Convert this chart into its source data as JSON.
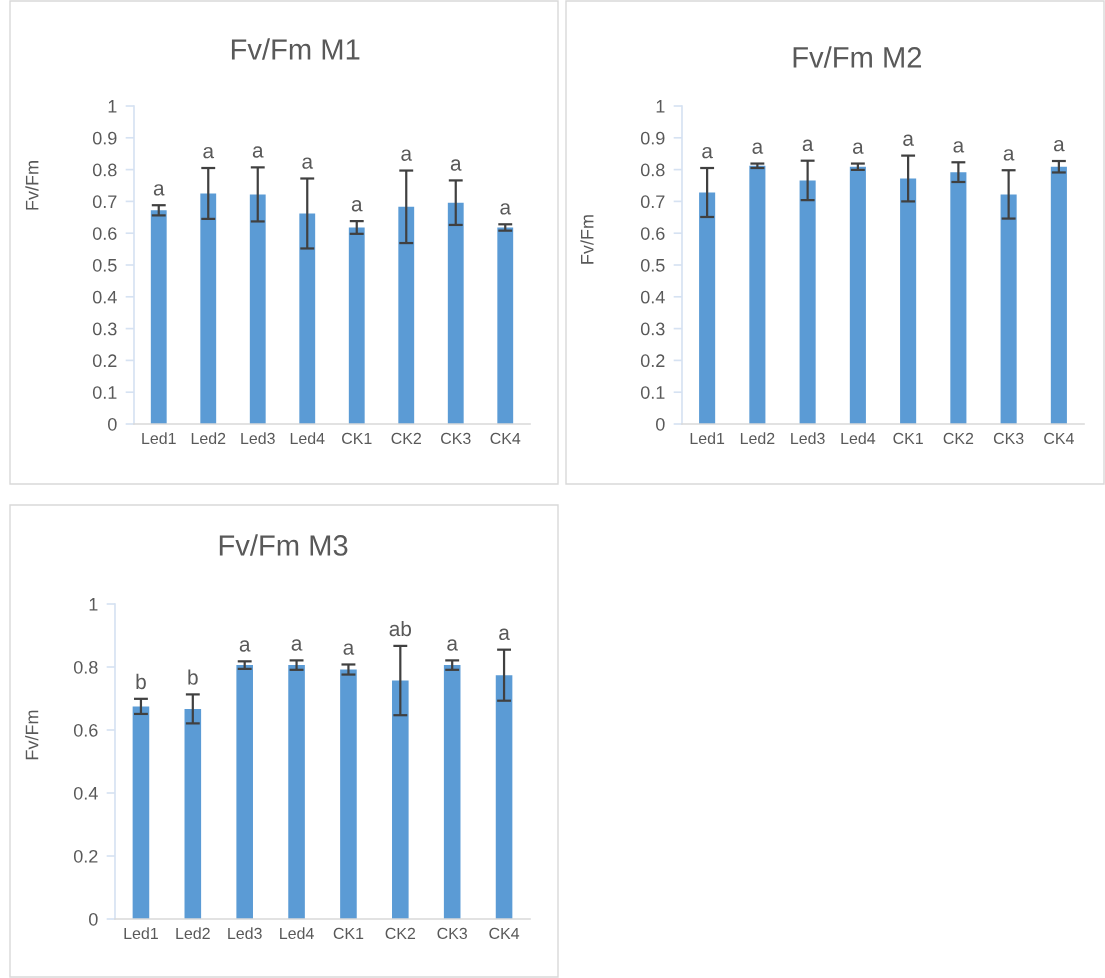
{
  "chart_data": [
    {
      "type": "bar",
      "title": "Fv/Fm M1",
      "ylabel": "Fv/Fm",
      "categories": [
        "Led1",
        "Led2",
        "Led3",
        "Led4",
        "CK1",
        "CK2",
        "CK3",
        "CK4"
      ],
      "color": "#5b9bd5",
      "values": [
        0.672,
        0.725,
        0.722,
        0.662,
        0.618,
        0.683,
        0.696,
        0.618
      ],
      "errors": [
        0.016,
        0.08,
        0.085,
        0.11,
        0.02,
        0.114,
        0.07,
        0.01
      ],
      "ylim": [
        0,
        1
      ],
      "yticks": [
        0,
        0.1,
        0.2,
        0.3,
        0.4,
        0.5,
        0.6,
        0.7,
        0.8,
        0.9,
        1
      ],
      "annotations": [
        {
          "text": "a",
          "x": "Led1",
          "y": 0.688
        },
        {
          "text": "a",
          "x": "Led2",
          "y": 0.805
        },
        {
          "text": "a",
          "x": "Led3",
          "y": 0.807
        },
        {
          "text": "a",
          "x": "Led4",
          "y": 0.772
        },
        {
          "text": "a",
          "x": "CK1",
          "y": 0.638
        },
        {
          "text": "a",
          "x": "CK2",
          "y": 0.797
        },
        {
          "text": "a",
          "x": "CK3",
          "y": 0.766
        },
        {
          "text": "a",
          "x": "CK4",
          "y": 0.628
        }
      ]
    },
    {
      "type": "bar",
      "title": "Fv/Fm M2",
      "ylabel": "Fv/Fm",
      "categories": [
        "Led1",
        "Led2",
        "Led3",
        "Led4",
        "CK1",
        "CK2",
        "CK3",
        "CK4"
      ],
      "color": "#5b9bd5",
      "values": [
        0.728,
        0.812,
        0.766,
        0.809,
        0.772,
        0.792,
        0.722,
        0.809
      ],
      "errors": [
        0.077,
        0.007,
        0.062,
        0.01,
        0.072,
        0.031,
        0.076,
        0.018
      ],
      "ylim": [
        0,
        1
      ],
      "yticks": [
        0,
        0.1,
        0.2,
        0.3,
        0.4,
        0.5,
        0.6,
        0.7,
        0.8,
        0.9,
        1
      ],
      "annotations": [
        {
          "text": "a",
          "x": "Led1",
          "y": 0.805
        },
        {
          "text": "a",
          "x": "Led2",
          "y": 0.819
        },
        {
          "text": "a",
          "x": "Led3",
          "y": 0.828
        },
        {
          "text": "a",
          "x": "Led4",
          "y": 0.819
        },
        {
          "text": "a",
          "x": "CK1",
          "y": 0.844
        },
        {
          "text": "a",
          "x": "CK2",
          "y": 0.823
        },
        {
          "text": "a",
          "x": "CK3",
          "y": 0.798
        },
        {
          "text": "a",
          "x": "CK4",
          "y": 0.827
        }
      ]
    },
    {
      "type": "bar",
      "title": "Fv/Fm M3",
      "ylabel": "Fv/Fm",
      "categories": [
        "Led1",
        "Led2",
        "Led3",
        "Led4",
        "CK1",
        "CK2",
        "CK3",
        "CK4"
      ],
      "color": "#5b9bd5",
      "values": [
        0.675,
        0.667,
        0.806,
        0.806,
        0.792,
        0.757,
        0.806,
        0.774
      ],
      "errors": [
        0.024,
        0.046,
        0.012,
        0.015,
        0.016,
        0.11,
        0.015,
        0.081
      ],
      "ylim": [
        0,
        1
      ],
      "yticks": [
        0,
        0.2,
        0.4,
        0.6,
        0.8,
        1
      ],
      "annotations": [
        {
          "text": "b",
          "x": "Led1",
          "y": 0.699
        },
        {
          "text": "b",
          "x": "Led2",
          "y": 0.713
        },
        {
          "text": "a",
          "x": "Led3",
          "y": 0.818
        },
        {
          "text": "a",
          "x": "Led4",
          "y": 0.821
        },
        {
          "text": "a",
          "x": "CK1",
          "y": 0.808
        },
        {
          "text": "ab",
          "x": "CK2",
          "y": 0.867
        },
        {
          "text": "a",
          "x": "CK3",
          "y": 0.821
        },
        {
          "text": "a",
          "x": "CK4",
          "y": 0.855
        }
      ]
    }
  ]
}
